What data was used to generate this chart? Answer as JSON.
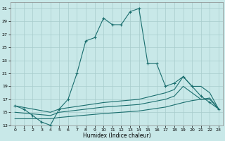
{
  "bg_color": "#c8e8e8",
  "grid_color": "#a8cccc",
  "line_color": "#1a6e6e",
  "xlabel": "Humidex (Indice chaleur)",
  "xlim_min": -0.5,
  "xlim_max": 23.5,
  "ylim_min": 13,
  "ylim_max": 32,
  "xticks": [
    0,
    1,
    2,
    3,
    4,
    5,
    6,
    7,
    8,
    9,
    10,
    11,
    12,
    13,
    14,
    15,
    16,
    17,
    18,
    19,
    20,
    21,
    22,
    23
  ],
  "yticks": [
    13,
    15,
    17,
    19,
    21,
    23,
    25,
    27,
    29,
    31
  ],
  "line1_x": [
    0,
    1,
    2,
    3,
    4,
    5,
    6,
    7,
    8,
    9,
    10,
    11,
    12,
    13,
    14,
    15,
    16,
    17,
    18,
    19,
    20,
    21,
    22,
    23
  ],
  "line1_y": [
    16,
    15.5,
    14.5,
    13.5,
    13,
    15.5,
    17,
    21,
    26,
    26.5,
    29.5,
    28.5,
    28.5,
    30.5,
    31,
    22.5,
    22.5,
    19,
    19.5,
    20.5,
    19,
    17.5,
    16.5,
    15.5
  ],
  "line2_x": [
    0,
    4,
    5,
    10,
    14,
    17,
    18,
    19,
    20,
    21,
    22,
    23
  ],
  "line2_y": [
    16,
    15,
    15.5,
    16.5,
    17,
    18,
    18.5,
    20.5,
    19,
    19,
    18,
    15.5
  ],
  "line3_x": [
    0,
    4,
    5,
    10,
    14,
    17,
    18,
    19,
    20,
    21,
    22,
    23
  ],
  "line3_y": [
    15,
    14.5,
    15,
    15.8,
    16.2,
    17,
    17.5,
    19,
    18,
    17,
    17,
    15.5
  ],
  "line4_x": [
    0,
    4,
    5,
    10,
    14,
    17,
    19,
    20,
    21,
    22,
    23
  ],
  "line4_y": [
    14,
    14,
    14.2,
    14.8,
    15.2,
    15.8,
    16.5,
    16.8,
    17,
    17.2,
    15.5
  ]
}
